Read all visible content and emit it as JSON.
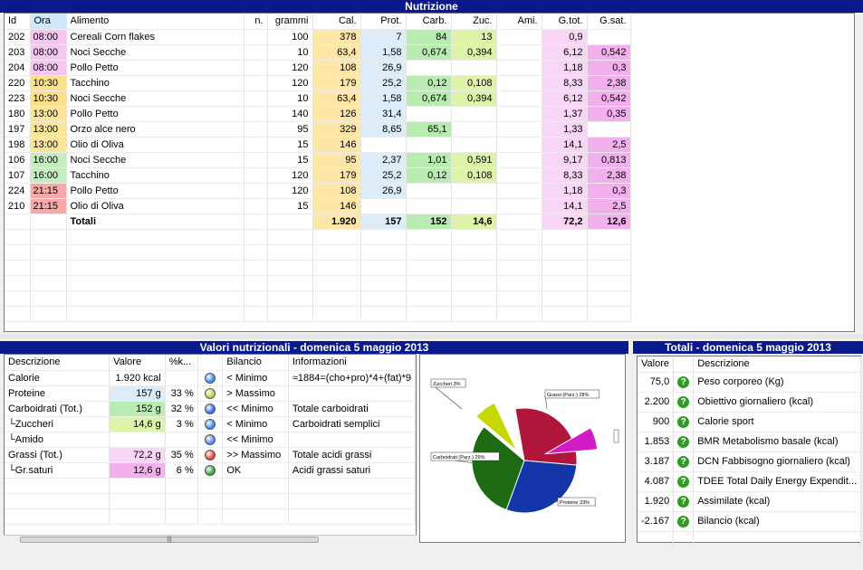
{
  "top": {
    "title": "Nutrizione",
    "columns": [
      "Id",
      "Ora",
      "Alimento",
      "n.",
      "grammi",
      "Cal.",
      "Prot.",
      "Carb.",
      "Zuc.",
      "Ami.",
      "G.tot.",
      "G.sat."
    ],
    "rows": [
      [
        "202",
        "08:00",
        "Cereali Corn flakes",
        "",
        "100",
        "378",
        "7",
        "84",
        "13",
        "",
        "0,9",
        ""
      ],
      [
        "203",
        "08:00",
        "Noci Secche",
        "",
        "10",
        "63,4",
        "1,58",
        "0,674",
        "0,394",
        "",
        "6,12",
        "0,542"
      ],
      [
        "204",
        "08:00",
        "Pollo Petto",
        "",
        "120",
        "108",
        "26,9",
        "",
        "",
        "",
        "1,18",
        "0,3"
      ],
      [
        "220",
        "10:30",
        "Tacchino",
        "",
        "120",
        "179",
        "25,2",
        "0,12",
        "0,108",
        "",
        "8,33",
        "2,38"
      ],
      [
        "223",
        "10:30",
        "Noci Secche",
        "",
        "10",
        "63,4",
        "1,58",
        "0,674",
        "0,394",
        "",
        "6,12",
        "0,542"
      ],
      [
        "180",
        "13:00",
        "Pollo Petto",
        "",
        "140",
        "126",
        "31,4",
        "",
        "",
        "",
        "1,37",
        "0,35"
      ],
      [
        "197",
        "13:00",
        "Orzo alce nero",
        "",
        "95",
        "329",
        "8,65",
        "65,1",
        "",
        "",
        "1,33",
        ""
      ],
      [
        "198",
        "13:00",
        "Olio di Oliva",
        "",
        "15",
        "146",
        "",
        "",
        "",
        "",
        "14,1",
        "2,5"
      ],
      [
        "106",
        "16:00",
        "Noci Secche",
        "",
        "15",
        "95",
        "2,37",
        "1,01",
        "0,591",
        "",
        "9,17",
        "0,813"
      ],
      [
        "107",
        "16:00",
        "Tacchino",
        "",
        "120",
        "179",
        "25,2",
        "0,12",
        "0,108",
        "",
        "8,33",
        "2,38"
      ],
      [
        "224",
        "21:15",
        "Pollo Petto",
        "",
        "120",
        "108",
        "26,9",
        "",
        "",
        "",
        "1,18",
        "0,3"
      ],
      [
        "210",
        "21:15",
        "Olio di Oliva",
        "",
        "15",
        "146",
        "",
        "",
        "",
        "",
        "14,1",
        "2,5"
      ]
    ],
    "totals": [
      "",
      "",
      "Totali",
      "",
      "",
      "1.920",
      "157",
      "152",
      "14,6",
      "",
      "72,2",
      "12,6"
    ],
    "ora_colors": {
      "08:00": "#f5c6f0",
      "10:30": "#fbdf8c",
      "13:00": "#fbe59a",
      "16:00": "#c6ecc0",
      "21:15": "#f5a9a9"
    }
  },
  "left": {
    "title": "Valori nutrizionali - domenica 5 maggio 2013",
    "columns": [
      "Descrizione",
      "Valore",
      "%k...",
      "",
      "Bilancio",
      "Informazioni"
    ],
    "rows": [
      {
        "desc": "Calorie",
        "val": "1.920 kcal",
        "pct": "",
        "dot": "#3b8ef0",
        "bil": "< Minimo",
        "info": "≈1884=(cho+pro)*4+(fat)*9",
        "bg": ""
      },
      {
        "desc": "Proteine",
        "val": "157 g",
        "pct": "33 %",
        "dot": "#b5d34a",
        "bil": "> Massimo",
        "info": "",
        "bg": "#dcecf8"
      },
      {
        "desc": "Carboidrati (Tot.)",
        "val": "152 g",
        "pct": "32 %",
        "dot": "#3b6ee8",
        "bil": "<< Minimo",
        "info": "Totale carboidrati",
        "bg": "#b9ecb1"
      },
      {
        "desc": "└Zuccheri",
        "val": "14,6 g",
        "pct": "3 %",
        "dot": "#3b8ef0",
        "bil": "< Minimo",
        "info": "Carboidrati semplici",
        "bg": "#dcf3a8"
      },
      {
        "desc": "└Amido",
        "val": "",
        "pct": "",
        "dot": "#5a86f0",
        "bil": "<< Minimo",
        "info": "",
        "bg": ""
      },
      {
        "desc": "Grassi (Tot.)",
        "val": "72,2 g",
        "pct": "35 %",
        "dot": "#e8443c",
        "bil": ">> Massimo",
        "info": "Totale acidi grassi",
        "bg": "#fad6f6"
      },
      {
        "desc": "└Gr.saturi",
        "val": "12,6 g",
        "pct": "6 %",
        "dot": "#3aa63a",
        "bil": "OK",
        "info": "Acidi grassi saturi",
        "bg": "#f3b0ef"
      }
    ]
  },
  "pie": {
    "labels": {
      "zuccheri": "Zuccheri 3%",
      "grassi": "Grassi (Parz.) 28%",
      "carbo": "Carboidrati (Parz.) 29%",
      "proteine": "Proteine 33%"
    },
    "colors": {
      "zuccheri": "#c5d800",
      "grassi": "#b0153a",
      "carbo": "#1f6b14",
      "proteine": "#1236a8",
      "saturi": "#d41ac4"
    }
  },
  "right": {
    "title": "Totali - domenica 5 maggio 2013",
    "columns": [
      "Valore",
      "Descrizione"
    ],
    "rows": [
      [
        "75,0",
        "Peso corporeo (Kg)"
      ],
      [
        "2.200",
        "Obiettivo giornaliero (kcal)"
      ],
      [
        "900",
        "Calorie sport"
      ],
      [
        "1.853",
        "BMR Metabolismo basale (kcal)"
      ],
      [
        "3.187",
        "DCN Fabbisogno giornaliero (kcal)"
      ],
      [
        "4.087",
        "TDEE Total Daily Energy Expendit..."
      ],
      [
        "1.920",
        "Assimilate (kcal)"
      ],
      [
        "-2.167",
        "Bilancio (kcal)"
      ]
    ],
    "help_icon": "?"
  },
  "scroll_grip": "|||"
}
